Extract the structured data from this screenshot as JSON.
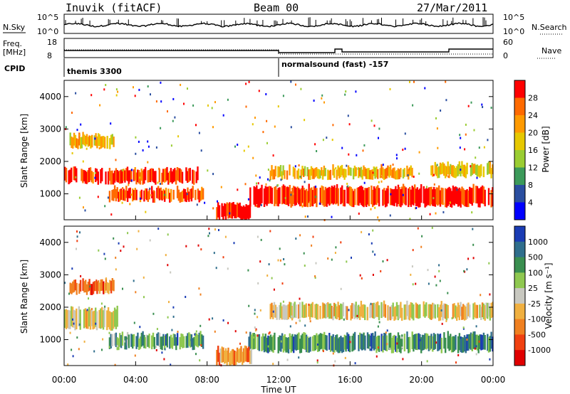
{
  "header": {
    "title": "Inuvik (fitACF)",
    "beam": "Beam 00",
    "date": "27/Mar/2011"
  },
  "top_panels": {
    "nsky_label": "N.Sky",
    "nsky_ticks": [
      "10^5",
      "10^0"
    ],
    "nsearch_label": "N.Search",
    "nsearch_ticks": [
      "10^5",
      "10^0"
    ],
    "freq_label": "Freq.",
    "freq_unit": "[MHz]",
    "freq_ticks": [
      "18",
      "8"
    ],
    "nave_label": "Nave",
    "nave_ticks": [
      "60",
      "0"
    ],
    "cpid_label": "CPID",
    "cpid_entries": [
      {
        "name": "themis 3300",
        "start": "00:00"
      },
      {
        "name": "normalsound (fast) -157",
        "start": "12:00"
      }
    ]
  },
  "chart_data": [
    {
      "type": "heatmap",
      "name": "power",
      "ylabel": "Slant Range [km]",
      "xlabel": "Time UT",
      "x_ticks": [
        "00:00",
        "04:00",
        "08:00",
        "12:00",
        "16:00",
        "20:00",
        "00:00"
      ],
      "y_ticks": [
        1000,
        2000,
        3000,
        4000
      ],
      "ylim": [
        200,
        4500
      ],
      "colorbar_label": "Power [dB]",
      "colorbar_ticks": [
        "28",
        "24",
        "20",
        "16",
        "12",
        "8",
        "4"
      ],
      "colorbar_colors": [
        "#ff0000",
        "#ff6a00",
        "#ff9a00",
        "#e6c800",
        "#9acd32",
        "#3c9a5a",
        "#2a4ea0",
        "#0000ff"
      ],
      "bands": [
        {
          "t0": 0.0,
          "t1": 7.5,
          "r0": 1350,
          "r1": 1750,
          "level": 0.9
        },
        {
          "t0": 2.5,
          "t1": 7.8,
          "r0": 800,
          "r1": 1150,
          "level": 0.85
        },
        {
          "t0": 10.3,
          "t1": 24.0,
          "r0": 650,
          "r1": 1200,
          "level": 0.92
        },
        {
          "t0": 11.5,
          "t1": 19.5,
          "r0": 1500,
          "r1": 1800,
          "level": 0.6
        },
        {
          "t0": 20.5,
          "t1": 24.0,
          "r0": 1550,
          "r1": 1900,
          "level": 0.55
        },
        {
          "t0": 0.3,
          "t1": 2.8,
          "r0": 2450,
          "r1": 2800,
          "level": 0.6
        },
        {
          "t0": 8.5,
          "t1": 10.5,
          "r0": 250,
          "r1": 700,
          "level": 0.95
        }
      ]
    },
    {
      "type": "heatmap",
      "name": "velocity",
      "ylabel": "Slant Range [km]",
      "xlabel": "Time UT",
      "x_ticks": [
        "00:00",
        "04:00",
        "08:00",
        "12:00",
        "16:00",
        "20:00",
        "00:00"
      ],
      "y_ticks": [
        1000,
        2000,
        3000,
        4000
      ],
      "ylim": [
        200,
        4500
      ],
      "colorbar_label": "Velocity [m s⁻¹]",
      "colorbar_ticks": [
        "1000",
        "500",
        "100",
        "25",
        "-25",
        "-100",
        "-500",
        "-1000"
      ],
      "colorbar_colors": [
        "#1a3cb4",
        "#2f6e8c",
        "#3a8f50",
        "#8fc850",
        "#c8c8c0",
        "#f0b040",
        "#f08020",
        "#f04010",
        "#e00000"
      ],
      "bands": [
        {
          "t0": 0.0,
          "t1": 3.0,
          "r0": 1350,
          "r1": 1950,
          "level": 0.5
        },
        {
          "t0": 2.5,
          "t1": 7.8,
          "r0": 750,
          "r1": 1150,
          "level": 0.72
        },
        {
          "t0": 10.3,
          "t1": 24.0,
          "r0": 650,
          "r1": 1150,
          "level": 0.75
        },
        {
          "t0": 11.5,
          "t1": 24.0,
          "r0": 1650,
          "r1": 2100,
          "level": 0.48
        },
        {
          "t0": 0.3,
          "t1": 2.8,
          "r0": 2450,
          "r1": 2800,
          "level": 0.25
        },
        {
          "t0": 8.5,
          "t1": 10.5,
          "r0": 250,
          "r1": 700,
          "level": 0.3
        }
      ]
    }
  ]
}
